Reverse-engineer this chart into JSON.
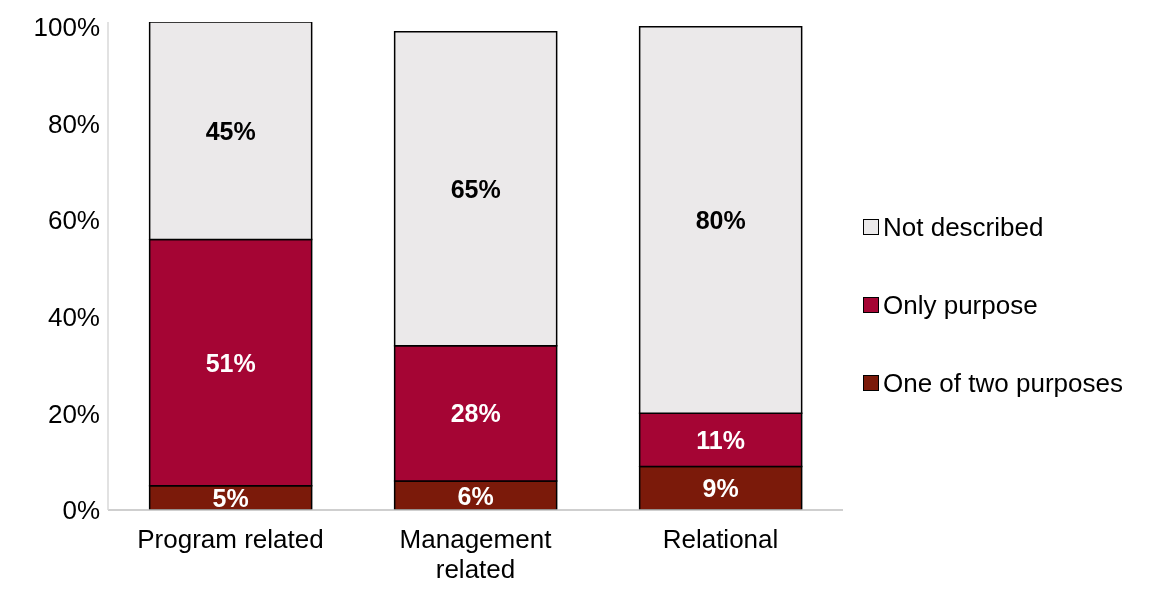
{
  "chart_data": {
    "type": "bar",
    "stacked": true,
    "categories": [
      "Program related",
      "Management related",
      "Relational"
    ],
    "series": [
      {
        "name": "One of two purposes",
        "color": "#7b1a0a",
        "values": [
          5,
          6,
          9
        ],
        "value_labels": [
          "5%",
          "6%",
          "9%"
        ]
      },
      {
        "name": "Only purpose",
        "color": "#a50534",
        "values": [
          51,
          28,
          11
        ],
        "value_labels": [
          "51%",
          "28%",
          "11%"
        ]
      },
      {
        "name": "Not described",
        "color": "#ebe9ea",
        "values": [
          45,
          65,
          80
        ],
        "value_labels": [
          "45%",
          "65%",
          "80%"
        ]
      }
    ],
    "ylim": [
      0,
      101
    ],
    "yticks": [
      {
        "value": 0,
        "label": "0%"
      },
      {
        "value": 20,
        "label": "20%"
      },
      {
        "value": 40,
        "label": "40%"
      },
      {
        "value": 60,
        "label": "60%"
      },
      {
        "value": 80,
        "label": "80%"
      },
      {
        "value": 100,
        "label": "100%"
      }
    ],
    "grid": false,
    "legend": "right"
  }
}
